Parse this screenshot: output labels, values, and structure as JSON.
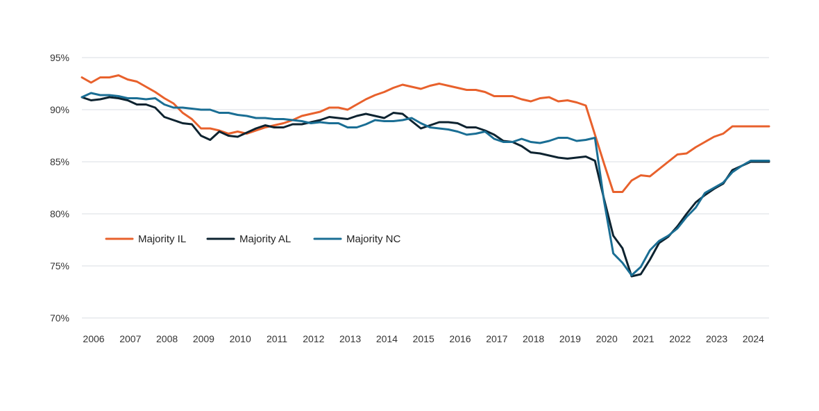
{
  "chart_data": {
    "type": "line",
    "title": "",
    "xlabel": "",
    "ylabel": "",
    "ylim": [
      70,
      95
    ],
    "xlim": [
      2006.0,
      2024.75
    ],
    "yticks": [
      "70%",
      "75%",
      "80%",
      "85%",
      "90%",
      "95%"
    ],
    "ytick_values": [
      70,
      75,
      80,
      85,
      90,
      95
    ],
    "xticks": [
      "2006",
      "2007",
      "2008",
      "2009",
      "2010",
      "2011",
      "2012",
      "2013",
      "2014",
      "2015",
      "2016",
      "2017",
      "2018",
      "2019",
      "2020",
      "2021",
      "2022",
      "2023",
      "2024"
    ],
    "xtick_values": [
      2006,
      2007,
      2008,
      2009,
      2010,
      2011,
      2012,
      2013,
      2014,
      2015,
      2016,
      2017,
      2018,
      2019,
      2020,
      2021,
      2022,
      2023,
      2024
    ],
    "grid": true,
    "legend_position": "left, lower-middle",
    "x": [
      2006.0,
      2006.25,
      2006.5,
      2006.75,
      2007.0,
      2007.25,
      2007.5,
      2007.75,
      2008.0,
      2008.25,
      2008.5,
      2008.75,
      2009.0,
      2009.25,
      2009.5,
      2009.75,
      2010.0,
      2010.25,
      2010.5,
      2010.75,
      2011.0,
      2011.25,
      2011.5,
      2011.75,
      2012.0,
      2012.25,
      2012.5,
      2012.75,
      2013.0,
      2013.25,
      2013.5,
      2013.75,
      2014.0,
      2014.25,
      2014.5,
      2014.75,
      2015.0,
      2015.25,
      2015.5,
      2015.75,
      2016.0,
      2016.25,
      2016.5,
      2016.75,
      2017.0,
      2017.25,
      2017.5,
      2017.75,
      2018.0,
      2018.25,
      2018.5,
      2018.75,
      2019.0,
      2019.25,
      2019.5,
      2019.75,
      2020.0,
      2020.25,
      2020.5,
      2020.75,
      2021.0,
      2021.25,
      2021.5,
      2021.75,
      2022.0,
      2022.25,
      2022.5,
      2022.75,
      2023.0,
      2023.25,
      2023.5,
      2023.75,
      2024.0,
      2024.25,
      2024.5,
      2024.75
    ],
    "series": [
      {
        "name": "Majority IL",
        "color": "#e8612c",
        "values": [
          93.1,
          92.6,
          93.1,
          93.1,
          93.3,
          92.9,
          92.7,
          92.2,
          91.7,
          91.1,
          90.6,
          89.7,
          89.1,
          88.2,
          88.2,
          88.0,
          87.7,
          87.9,
          87.7,
          88.0,
          88.3,
          88.5,
          88.7,
          89.0,
          89.4,
          89.6,
          89.8,
          90.2,
          90.2,
          90.0,
          90.5,
          91.0,
          91.4,
          91.7,
          92.1,
          92.4,
          92.2,
          92.0,
          92.3,
          92.5,
          92.3,
          92.1,
          91.9,
          91.9,
          91.7,
          91.3,
          91.3,
          91.3,
          91.0,
          90.8,
          91.1,
          91.2,
          90.8,
          90.9,
          90.7,
          90.4,
          87.6,
          84.8,
          82.1,
          82.1,
          83.2,
          83.7,
          83.6,
          84.3,
          85.0,
          85.7,
          85.8,
          86.4,
          86.9,
          87.4,
          87.7,
          88.4,
          88.4,
          88.4,
          88.4,
          88.4
        ]
      },
      {
        "name": "Majority AL",
        "color": "#0d2330",
        "values": [
          91.2,
          90.9,
          91.0,
          91.2,
          91.1,
          90.9,
          90.5,
          90.5,
          90.2,
          89.3,
          89.0,
          88.7,
          88.6,
          87.5,
          87.1,
          87.9,
          87.5,
          87.4,
          87.8,
          88.2,
          88.5,
          88.3,
          88.3,
          88.6,
          88.6,
          88.8,
          89.0,
          89.3,
          89.2,
          89.1,
          89.4,
          89.6,
          89.4,
          89.2,
          89.7,
          89.6,
          88.9,
          88.2,
          88.5,
          88.8,
          88.8,
          88.7,
          88.3,
          88.3,
          88.0,
          87.6,
          87.0,
          86.9,
          86.5,
          85.9,
          85.8,
          85.6,
          85.4,
          85.3,
          85.4,
          85.5,
          85.1,
          81.4,
          77.9,
          76.7,
          74.0,
          74.2,
          75.6,
          77.2,
          77.8,
          78.8,
          80.0,
          81.1,
          81.8,
          82.4,
          82.9,
          84.2,
          84.6,
          85.0,
          85.0,
          85.0
        ]
      },
      {
        "name": "Majority NC",
        "color": "#1a6e94",
        "values": [
          91.2,
          91.6,
          91.4,
          91.4,
          91.3,
          91.1,
          91.1,
          91.0,
          91.1,
          90.5,
          90.2,
          90.2,
          90.1,
          90.0,
          90.0,
          89.7,
          89.7,
          89.5,
          89.4,
          89.2,
          89.2,
          89.1,
          89.1,
          89.0,
          88.9,
          88.7,
          88.8,
          88.7,
          88.7,
          88.3,
          88.3,
          88.6,
          89.0,
          88.9,
          88.9,
          89.0,
          89.2,
          88.7,
          88.3,
          88.2,
          88.1,
          87.9,
          87.6,
          87.7,
          87.9,
          87.2,
          86.9,
          86.9,
          87.2,
          86.9,
          86.8,
          87.0,
          87.3,
          87.3,
          87.0,
          87.1,
          87.3,
          81.2,
          76.2,
          75.3,
          74.1,
          74.9,
          76.5,
          77.4,
          77.9,
          78.6,
          79.7,
          80.6,
          82.0,
          82.5,
          83.0,
          84.0,
          84.6,
          85.1,
          85.1,
          85.1
        ]
      }
    ]
  }
}
